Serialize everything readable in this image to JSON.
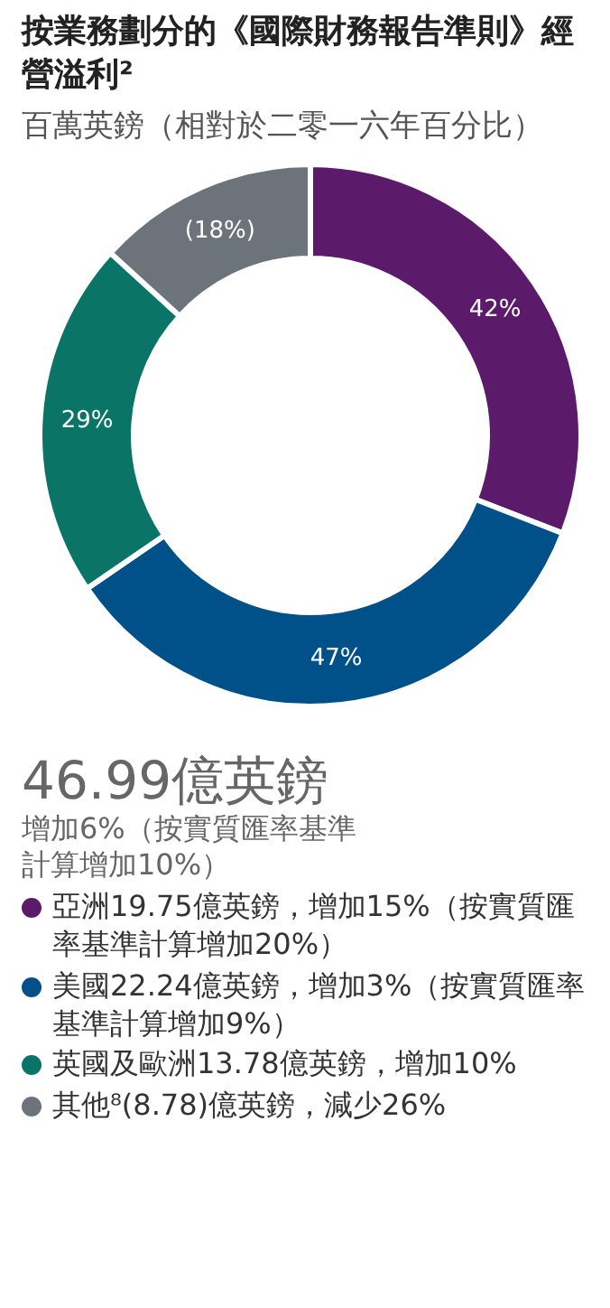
{
  "chart_data": {
    "type": "donut",
    "title": "按業務劃分的《國際財務報告準則》經營溢利²",
    "subtitle": "百萬英鎊（相對於二零一六年百分比）",
    "annotations": [
      "46.99億英鎊",
      "增加6%（按實質匯率基準計算增加10%）"
    ],
    "categories": [
      "亞洲19.75億英鎊，增加15%（按實質匯率基準計算增加20%）",
      "美國22.24億英鎊，增加3%（按實質匯率基準計算增加9%）",
      "英國及歐洲13.78億英鎊，增加10%",
      "其他⁸(8.78)億英鎊，減少26%"
    ],
    "values": [
      42,
      47,
      29,
      18
    ],
    "value_labels": [
      "42%",
      "47%",
      "29%",
      "(18%)"
    ],
    "colors": [
      "#5c1a6b",
      "#00508a",
      "#0a7566",
      "#6d737b"
    ],
    "legend": "bottom"
  }
}
